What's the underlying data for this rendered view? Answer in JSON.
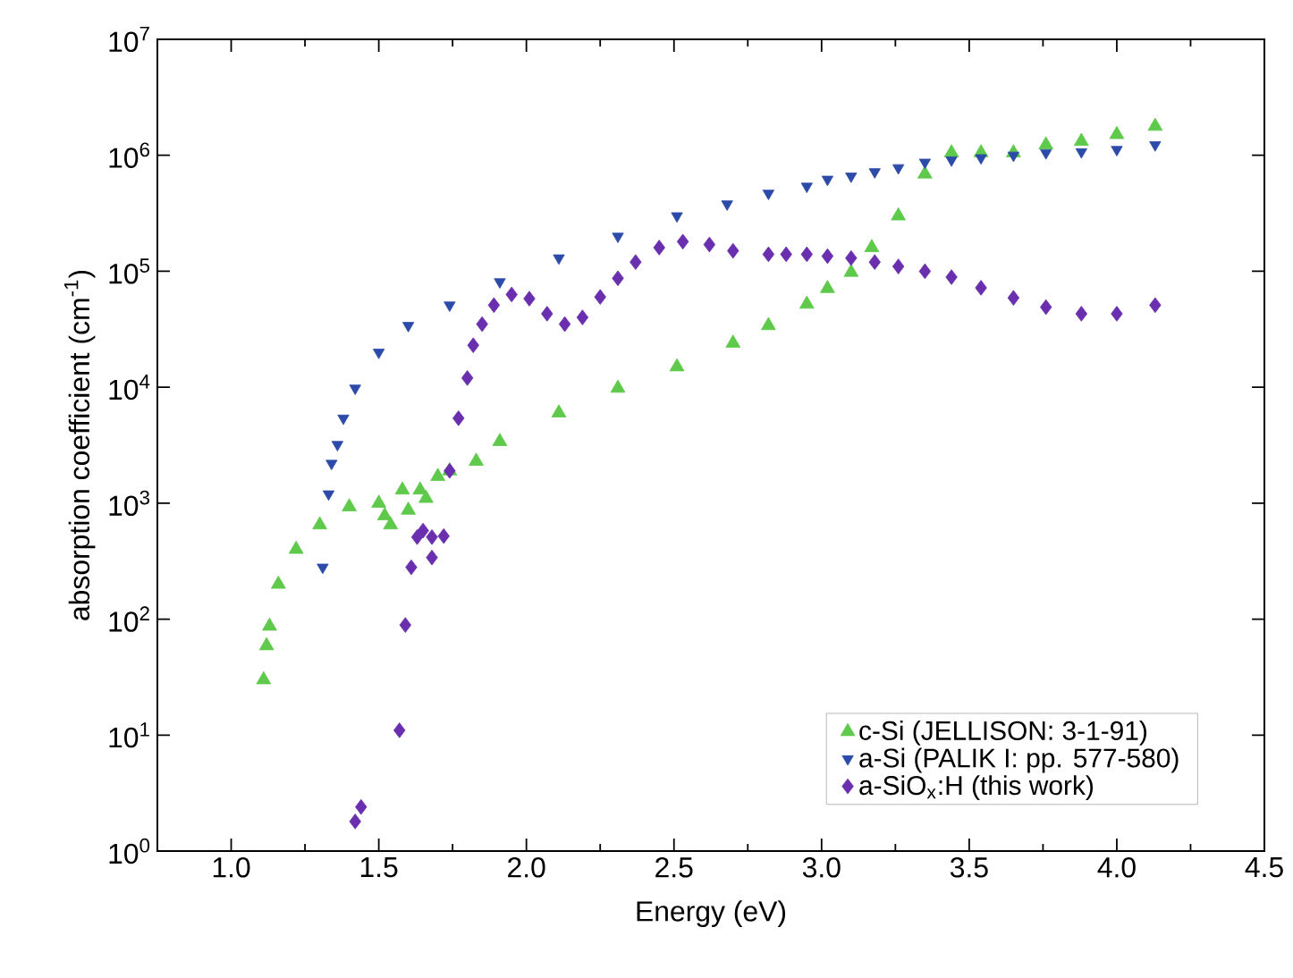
{
  "chart_data": {
    "type": "scatter",
    "xlabel": "Energy (eV)",
    "ylabel": "absorption coefficient (cm$^{-1}$)",
    "log": "y",
    "xlim": [
      0.75,
      4.5
    ],
    "ylim": [
      1,
      10000000
    ],
    "xticks": [
      {
        "value": 1,
        "label": "1.0"
      },
      {
        "value": 1.5,
        "label": "1.5"
      },
      {
        "value": 2,
        "label": "2.0"
      },
      {
        "value": 2.5,
        "label": "2.5"
      },
      {
        "value": 3,
        "label": "3.0"
      },
      {
        "value": 3.5,
        "label": "3.5"
      },
      {
        "value": 4,
        "label": "4.0"
      },
      {
        "value": 4.5,
        "label": "4.5"
      }
    ],
    "yticks": [
      {
        "value": 1,
        "label": "10$^{0}$"
      },
      {
        "value": 10,
        "label": "10$^{1}$"
      },
      {
        "value": 100,
        "label": "10$^{2}$"
      },
      {
        "value": 1000,
        "label": "10$^{3}$"
      },
      {
        "value": 10000,
        "label": "10$^{4}$"
      },
      {
        "value": 100000,
        "label": "10$^{5}$"
      },
      {
        "value": 1000000,
        "label": "10$^{6}$"
      },
      {
        "value": 10000000,
        "label": "10$^{7}$"
      }
    ],
    "legend": "bottom right",
    "grid": false,
    "series": [
      {
        "name": "c-Si (JELLISON: 3-1-91)",
        "color": "#5ec94a",
        "marker": "triangle",
        "x": [
          1.11,
          1.12,
          1.13,
          1.16,
          1.22,
          1.3,
          1.4,
          1.5,
          1.52,
          1.54,
          1.58,
          1.6,
          1.64,
          1.66,
          1.7,
          1.74,
          1.83,
          1.91,
          2.11,
          2.31,
          2.51,
          2.7,
          2.82,
          2.95,
          3.02,
          3.1,
          3.17,
          3.26,
          3.35,
          3.44,
          3.54,
          3.65,
          3.76,
          3.88,
          4.0,
          4.13
        ],
        "values": [
          30,
          59,
          87,
          200,
          400,
          650,
          930,
          1000,
          780,
          650,
          1300,
          870,
          1300,
          1100,
          1700,
          1900,
          2300,
          3400,
          6000,
          9800,
          15000,
          24000,
          34000,
          52000,
          71000,
          98000,
          160000,
          300000,
          690000,
          1050000,
          1050000,
          1050000,
          1230000,
          1320000,
          1510000,
          1780000
        ]
      },
      {
        "name": "a-Si (PALIK I: pp. 577-580)",
        "color": "#2c4aa8",
        "marker": "triangle_down",
        "x": [
          1.31,
          1.33,
          1.34,
          1.36,
          1.38,
          1.42,
          1.5,
          1.6,
          1.74,
          1.91,
          2.11,
          2.31,
          2.51,
          2.68,
          2.82,
          2.95,
          3.02,
          3.1,
          3.18,
          3.26,
          3.35,
          3.44,
          3.54,
          3.65,
          3.76,
          3.88,
          4.0,
          4.13
        ],
        "values": [
          280,
          1200,
          2200,
          3200,
          5400,
          9800,
          20000,
          34000,
          51000,
          81000,
          130000,
          200000,
          300000,
          380000,
          470000,
          540000,
          620000,
          660000,
          720000,
          780000,
          870000,
          910000,
          950000,
          1000000,
          1050000,
          1070000,
          1120000,
          1230000
        ]
      },
      {
        "name": "a-SiO$_{x}$:H (this work)",
        "color": "#6a2fae",
        "marker": "diamond",
        "x": [
          1.42,
          1.44,
          1.57,
          1.59,
          1.61,
          1.63,
          1.65,
          1.68,
          1.68,
          1.72,
          1.74,
          1.77,
          1.8,
          1.82,
          1.85,
          1.89,
          1.95,
          2.01,
          2.07,
          2.13,
          2.19,
          2.25,
          2.31,
          2.37,
          2.45,
          2.53,
          2.62,
          2.7,
          2.82,
          2.88,
          2.95,
          3.02,
          3.1,
          3.18,
          3.26,
          3.35,
          3.44,
          3.54,
          3.65,
          3.76,
          3.88,
          4.0,
          4.13
        ],
        "values": [
          1.8,
          2.4,
          11,
          89,
          280,
          510,
          580,
          340,
          510,
          520,
          1900,
          5400,
          12000,
          23000,
          35000,
          51000,
          63000,
          58000,
          43000,
          35000,
          40000,
          60000,
          87000,
          120000,
          160000,
          180000,
          170000,
          150000,
          140000,
          140000,
          140000,
          135000,
          130000,
          120000,
          110000,
          100000,
          89000,
          72000,
          59000,
          49000,
          43000,
          43000,
          51000
        ]
      }
    ]
  }
}
